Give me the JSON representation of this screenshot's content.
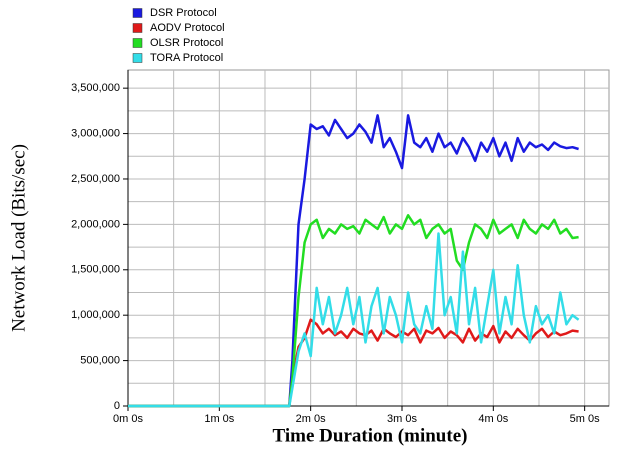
{
  "chart_data": {
    "type": "line",
    "ylabel": "Network Load (Bits/sec)",
    "xlabel": "Time Duration (minute)",
    "x": [
      0,
      106,
      108,
      112,
      116,
      120,
      124,
      128,
      132,
      136,
      140,
      144,
      148,
      152,
      156,
      160,
      164,
      168,
      172,
      176,
      180,
      184,
      188,
      192,
      196,
      200,
      204,
      208,
      212,
      216,
      220,
      224,
      228,
      232,
      236,
      240,
      244,
      248,
      252,
      256,
      260,
      264,
      268,
      272,
      276,
      280,
      284,
      288,
      292,
      296
    ],
    "series": [
      {
        "name": "DSR Protocol",
        "color": "#1a1ae0",
        "values": [
          0,
          0,
          500000,
          2000000,
          2500000,
          3100000,
          3050000,
          3080000,
          2980000,
          3150000,
          3050000,
          2950000,
          3000000,
          3100000,
          3020000,
          2900000,
          3200000,
          2850000,
          2950000,
          2800000,
          2620000,
          3200000,
          2900000,
          2850000,
          2950000,
          2800000,
          3000000,
          2850000,
          2900000,
          2780000,
          2950000,
          2850000,
          2700000,
          2900000,
          2800000,
          2950000,
          2750000,
          2900000,
          2700000,
          2950000,
          2800000,
          2900000,
          2850000,
          2880000,
          2820000,
          2900000,
          2860000,
          2840000,
          2850000,
          2830000
        ]
      },
      {
        "name": "AODV Protocol",
        "color": "#e01a1a",
        "values": [
          0,
          0,
          300000,
          650000,
          750000,
          950000,
          900000,
          800000,
          850000,
          780000,
          820000,
          750000,
          850000,
          800000,
          780000,
          830000,
          720000,
          850000,
          800000,
          760000,
          820000,
          780000,
          850000,
          700000,
          830000,
          800000,
          860000,
          750000,
          820000,
          780000,
          700000,
          850000,
          720000,
          800000,
          760000,
          880000,
          700000,
          820000,
          750000,
          850000,
          780000,
          720000,
          800000,
          850000,
          760000,
          820000,
          780000,
          800000,
          830000,
          820000
        ]
      },
      {
        "name": "OLSR Protocol",
        "color": "#22dd22",
        "values": [
          0,
          0,
          300000,
          1200000,
          1800000,
          2000000,
          2050000,
          1850000,
          1950000,
          1900000,
          2000000,
          1950000,
          1980000,
          1900000,
          2050000,
          2000000,
          1950000,
          2080000,
          1900000,
          2000000,
          1950000,
          2100000,
          2000000,
          2050000,
          1850000,
          1950000,
          2000000,
          1900000,
          1950000,
          1600000,
          1500000,
          1800000,
          2000000,
          1950000,
          1850000,
          2050000,
          1900000,
          1950000,
          2000000,
          1850000,
          2050000,
          1950000,
          1900000,
          2000000,
          1950000,
          2050000,
          1900000,
          1950000,
          1850000,
          1860000
        ]
      },
      {
        "name": "TORA Protocol",
        "color": "#33dde8",
        "values": [
          0,
          0,
          200000,
          600000,
          800000,
          550000,
          1300000,
          900000,
          1200000,
          800000,
          1000000,
          1300000,
          900000,
          1200000,
          700000,
          1100000,
          1300000,
          800000,
          1200000,
          1000000,
          700000,
          1250000,
          900000,
          800000,
          1100000,
          850000,
          1900000,
          1000000,
          1200000,
          800000,
          1700000,
          900000,
          1300000,
          700000,
          1100000,
          1500000,
          800000,
          1200000,
          900000,
          1550000,
          1000000,
          700000,
          1100000,
          900000,
          1000000,
          800000,
          1250000,
          900000,
          1000000,
          950000
        ]
      }
    ],
    "xlim": [
      0,
      316
    ],
    "xticks": [
      {
        "value": 0,
        "label": "0m 0s"
      },
      {
        "value": 60,
        "label": "1m 0s"
      },
      {
        "value": 120,
        "label": "2m 0s"
      },
      {
        "value": 180,
        "label": "3m 0s"
      },
      {
        "value": 240,
        "label": "4m 0s"
      },
      {
        "value": 300,
        "label": "5m 0s"
      }
    ],
    "xminorticks": [
      30,
      90,
      150,
      210,
      270
    ],
    "ylim": [
      0,
      3700000
    ],
    "yticks": [
      0,
      {
        "value": 500000,
        "label": "500,000"
      },
      {
        "value": 1000000,
        "label": "1,000,000"
      },
      {
        "value": 1500000,
        "label": "1,500,000"
      },
      {
        "value": 2000000,
        "label": "2,000,000"
      },
      {
        "value": 2500000,
        "label": "2,500,000"
      },
      {
        "value": 3000000,
        "label": "3,000,000"
      },
      {
        "value": 3500000,
        "label": "3,500,000"
      }
    ],
    "yminorticks": [
      250000,
      750000,
      1250000,
      1750000,
      2250000,
      2750000,
      3250000
    ],
    "grid": true,
    "legend": "top-left"
  }
}
